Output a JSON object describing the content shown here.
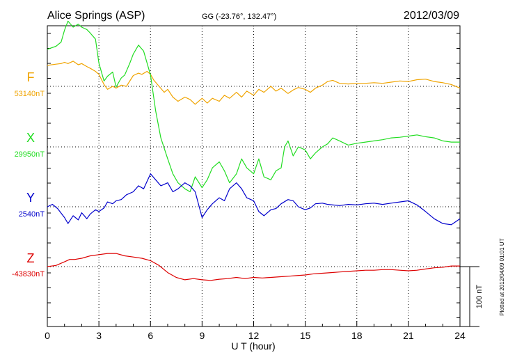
{
  "chart_data": {
    "type": "line",
    "title": "Alice Springs (ASP)",
    "subtitle": "GG (-23.76°, 132.47°)",
    "date": "2012/03/09",
    "xlabel": "U T (hour)",
    "xlim": [
      0,
      24
    ],
    "xticks": [
      0,
      3,
      6,
      9,
      12,
      15,
      18,
      21,
      24
    ],
    "xtick_labels": [
      "0",
      "3",
      "6",
      "9",
      "12",
      "15",
      "18",
      "21",
      "24"
    ],
    "grid": true,
    "scale_bar": "100 nT",
    "plotted_note": "Plotted at 2012/04/09 01:01 UT",
    "series": [
      {
        "name": "F",
        "baseline": "53140nT",
        "color": "#f0a400",
        "offset_nT": 0,
        "x": [
          0,
          0.5,
          0.8,
          1.0,
          1.2,
          1.5,
          1.8,
          2.0,
          2.3,
          2.5,
          2.8,
          3.0,
          3.3,
          3.5,
          3.8,
          4.0,
          4.3,
          4.6,
          5.0,
          5.3,
          5.5,
          5.8,
          6.0,
          6.2,
          6.5,
          6.8,
          7.0,
          7.3,
          7.6,
          8.0,
          8.3,
          8.6,
          9.0,
          9.3,
          9.6,
          10.0,
          10.3,
          10.6,
          11.0,
          11.3,
          11.6,
          12.0,
          12.3,
          12.6,
          13.0,
          13.3,
          13.6,
          14.0,
          14.3,
          14.6,
          15.0,
          15.3,
          15.6,
          16.0,
          16.3,
          16.6,
          17.0,
          17.5,
          18.0,
          18.5,
          19.0,
          19.5,
          20.0,
          20.5,
          21.0,
          21.5,
          22.0,
          22.5,
          23.0,
          23.5,
          24.0
        ],
        "values": [
          35,
          37,
          38,
          40,
          38,
          42,
          36,
          38,
          33,
          30,
          25,
          20,
          3,
          -5,
          0,
          -3,
          2,
          0,
          18,
          22,
          20,
          25,
          20,
          10,
          0,
          -10,
          -5,
          -18,
          -25,
          -18,
          -22,
          -30,
          -20,
          -28,
          -20,
          -25,
          -15,
          -20,
          -10,
          -18,
          -8,
          -15,
          -5,
          -10,
          0,
          -8,
          -3,
          -12,
          -6,
          -2,
          -5,
          -10,
          -3,
          2,
          8,
          10,
          5,
          4,
          5,
          5,
          6,
          5,
          7,
          9,
          8,
          11,
          12,
          8,
          6,
          3,
          -3
        ]
      },
      {
        "name": "X",
        "baseline": "29950nT",
        "color": "#22dd22",
        "offset_nT": 0,
        "x": [
          0,
          0.5,
          0.8,
          1.0,
          1.2,
          1.5,
          1.8,
          2.0,
          2.3,
          2.5,
          2.8,
          3.0,
          3.3,
          3.5,
          3.8,
          4.0,
          4.3,
          4.5,
          4.8,
          5.0,
          5.3,
          5.6,
          6.0,
          6.3,
          6.6,
          7.0,
          7.3,
          7.6,
          8.0,
          8.3,
          8.6,
          9.0,
          9.3,
          9.6,
          10.0,
          10.3,
          10.6,
          11.0,
          11.3,
          11.6,
          12.0,
          12.3,
          12.6,
          13.0,
          13.3,
          13.6,
          13.8,
          14.0,
          14.3,
          14.6,
          15.0,
          15.3,
          15.6,
          16.0,
          16.3,
          16.6,
          17.0,
          17.5,
          18.0,
          18.5,
          19.0,
          19.5,
          20.0,
          20.5,
          21.0,
          21.5,
          22.0,
          22.5,
          23.0,
          23.5,
          24.0
        ],
        "values": [
          163,
          168,
          175,
          195,
          210,
          200,
          205,
          200,
          196,
          190,
          180,
          140,
          110,
          118,
          125,
          100,
          115,
          120,
          140,
          155,
          170,
          160,
          120,
          60,
          15,
          -20,
          -45,
          -60,
          -70,
          -75,
          -50,
          -68,
          -55,
          -35,
          -25,
          -40,
          -60,
          -45,
          -20,
          -35,
          -45,
          -20,
          -50,
          -55,
          -40,
          -35,
          0,
          10,
          -15,
          0,
          -5,
          -20,
          -10,
          0,
          5,
          15,
          10,
          3,
          6,
          8,
          10,
          12,
          15,
          16,
          18,
          20,
          17,
          15,
          10,
          8,
          8
        ]
      },
      {
        "name": "Y",
        "baseline": "2540nT",
        "color": "#0000cc",
        "offset_nT": 0,
        "x": [
          0,
          0.3,
          0.6,
          1.0,
          1.2,
          1.5,
          1.8,
          2.0,
          2.3,
          2.5,
          2.8,
          3.0,
          3.3,
          3.5,
          3.8,
          4.0,
          4.3,
          4.6,
          5.0,
          5.3,
          5.6,
          6.0,
          6.3,
          6.6,
          7.0,
          7.3,
          7.6,
          8.0,
          8.3,
          8.6,
          9.0,
          9.3,
          9.6,
          10.0,
          10.3,
          10.6,
          11.0,
          11.3,
          11.6,
          12.0,
          12.3,
          12.6,
          13.0,
          13.3,
          13.6,
          14.0,
          14.3,
          14.6,
          15.0,
          15.3,
          15.6,
          16.0,
          16.3,
          16.6,
          17.0,
          17.5,
          18.0,
          18.5,
          19.0,
          19.5,
          20.0,
          20.5,
          21.0,
          21.5,
          22.0,
          22.5,
          23.0,
          23.5,
          24.0
        ],
        "values": [
          0,
          4,
          -3,
          -18,
          -28,
          -15,
          -22,
          -10,
          -20,
          -12,
          -5,
          -8,
          -2,
          8,
          5,
          10,
          12,
          20,
          25,
          35,
          30,
          55,
          45,
          35,
          40,
          25,
          30,
          40,
          35,
          25,
          -18,
          -5,
          5,
          15,
          10,
          30,
          40,
          30,
          15,
          10,
          -8,
          -15,
          -5,
          -3,
          5,
          12,
          10,
          0,
          -5,
          -2,
          5,
          6,
          4,
          3,
          2,
          4,
          3,
          5,
          6,
          4,
          6,
          8,
          10,
          3,
          -8,
          -20,
          -28,
          -30,
          -20
        ]
      },
      {
        "name": "Z",
        "baseline": "-43830nT",
        "color": "#dd0000",
        "offset_nT": 0,
        "x": [
          0,
          0.5,
          1.0,
          1.3,
          1.6,
          2.0,
          2.5,
          3.0,
          3.5,
          4.0,
          4.5,
          5.0,
          5.5,
          6.0,
          6.5,
          7.0,
          7.5,
          8.0,
          8.5,
          9.0,
          9.5,
          10.0,
          10.5,
          11.0,
          11.5,
          12.0,
          12.5,
          13.0,
          13.5,
          14.0,
          14.5,
          15.0,
          15.5,
          16.0,
          16.5,
          17.0,
          17.5,
          18.0,
          18.5,
          19.0,
          19.5,
          20.0,
          20.5,
          21.0,
          21.5,
          22.0,
          22.5,
          23.0,
          23.5,
          24.0
        ],
        "values": [
          0,
          2,
          8,
          12,
          12,
          14,
          18,
          20,
          22,
          22,
          18,
          16,
          14,
          10,
          2,
          -10,
          -18,
          -22,
          -20,
          -22,
          -23,
          -21,
          -20,
          -18,
          -20,
          -18,
          -19,
          -18,
          -17,
          -16,
          -15,
          -14,
          -12,
          -11,
          -10,
          -9,
          -8,
          -7,
          -6,
          -6,
          -5,
          -5,
          -6,
          -7,
          -6,
          -4,
          -2,
          -1,
          1,
          1
        ]
      }
    ]
  }
}
